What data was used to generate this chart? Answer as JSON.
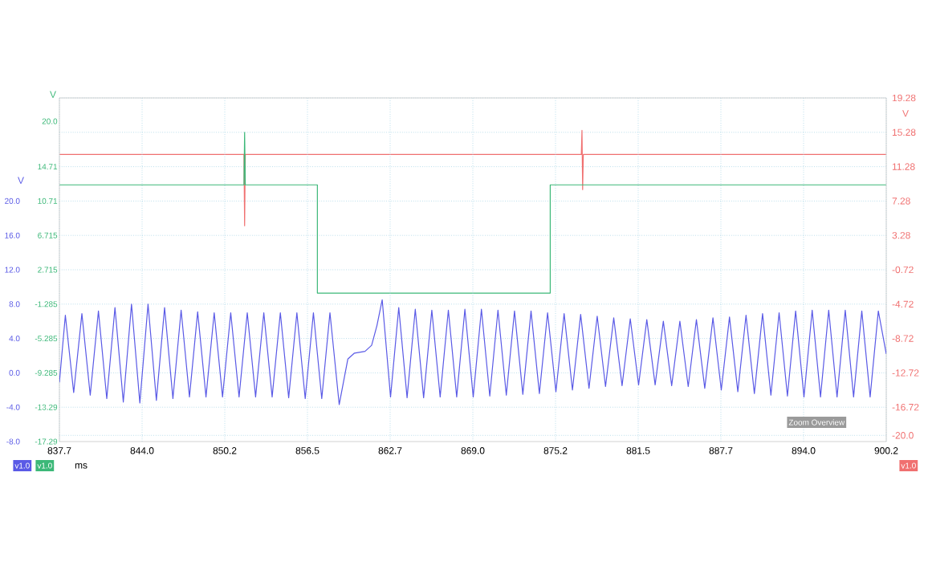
{
  "chart_data": {
    "type": "line",
    "xlabel": "ms",
    "ylabel": "V",
    "y2label": "V",
    "y3label": "V",
    "xlim": [
      837.7,
      900.2
    ],
    "xticks": [
      837.7,
      {
        "value": 843.95,
        "label": "844.0"
      },
      850.2,
      {
        "value": 856.45,
        "label": "856.5"
      },
      862.7,
      {
        "value": 868.95,
        "label": "869.0"
      },
      875.2,
      {
        "value": 881.45,
        "label": "881.5"
      },
      887.7,
      {
        "value": 893.95,
        "label": "894.0"
      },
      900.2
    ],
    "ylim": [
      -8,
      32
    ],
    "yticks": [
      {
        "value": -8,
        "label": "-8.0"
      },
      {
        "value": -4,
        "label": "-4.0"
      },
      {
        "value": 0,
        "label": "0.0"
      },
      {
        "value": 4,
        "label": "4.0"
      },
      {
        "value": 8,
        "label": "8.0"
      },
      {
        "value": 12,
        "label": "12.0"
      },
      {
        "value": 16,
        "label": "16.0"
      },
      {
        "value": 20,
        "label": "20.0"
      }
    ],
    "y2lim": [
      -20.72,
      19.28
    ],
    "y2ticks": [
      {
        "value": -20,
        "label": "-20.0"
      },
      -16.72,
      -12.72,
      -8.72,
      -4.72,
      -0.72,
      3.28,
      7.28,
      11.28,
      15.28,
      19.28
    ],
    "y3lim": [
      -17.285,
      22.715
    ],
    "y3ticks": [
      {
        "value": -17.285,
        "label": "-17.29"
      },
      {
        "value": -13.285,
        "label": "-13.29"
      },
      -9.285,
      -5.285,
      -1.285,
      2.715,
      6.715,
      {
        "value": 10.715,
        "label": "10.71"
      },
      {
        "value": 14.715,
        "label": "14.71"
      },
      {
        "value": 20,
        "label": "20.0"
      }
    ],
    "grid": true,
    "annotations": [
      "Zoom Overview",
      "v1.0",
      "v1.0",
      "v1.0"
    ],
    "series": [
      {
        "color": "#5a5ae6",
        "x": [
          837.7,
          838.15,
          838.78,
          839.4,
          840.03,
          840.65,
          841.28,
          841.9,
          842.53,
          843.15,
          843.78,
          844.4,
          845.03,
          845.65,
          846.28,
          846.9,
          847.53,
          848.15,
          848.78,
          849.4,
          850.03,
          850.65,
          851.28,
          851.9,
          852.53,
          853.15,
          853.78,
          854.4,
          855.03,
          855.65,
          856.28,
          856.9,
          857.53,
          858.15,
          858.85,
          859.5,
          860.0,
          860.8,
          861.3,
          861.7,
          862.1,
          862.73,
          863.35,
          863.98,
          864.6,
          865.23,
          865.85,
          866.48,
          867.1,
          867.73,
          868.35,
          868.98,
          869.6,
          870.23,
          870.85,
          871.48,
          872.1,
          872.73,
          873.35,
          873.98,
          874.6,
          875.23,
          875.85,
          876.48,
          877.1,
          877.73,
          878.35,
          878.98,
          879.6,
          880.23,
          880.85,
          881.48,
          882.1,
          882.73,
          883.35,
          883.98,
          884.6,
          885.23,
          885.85,
          886.48,
          887.1,
          887.73,
          888.35,
          888.98,
          889.6,
          890.23,
          890.85,
          891.48,
          892.1,
          892.73,
          893.35,
          893.98,
          894.6,
          895.23,
          895.85,
          896.48,
          897.1,
          897.73,
          898.35,
          898.98,
          899.6,
          900.2
        ],
        "values": [
          -1.1,
          6.7,
          -2.3,
          6.9,
          -2.6,
          7.2,
          -3.0,
          7.6,
          -3.4,
          8.0,
          -3.5,
          8.0,
          -3.2,
          7.6,
          -3.0,
          7.3,
          -2.8,
          7.1,
          -2.8,
          7.0,
          -2.8,
          7.0,
          -2.8,
          7.0,
          -2.8,
          7.0,
          -2.8,
          7.0,
          -2.9,
          7.0,
          -3.0,
          7.0,
          -3.0,
          7.0,
          -3.7,
          1.6,
          2.3,
          2.5,
          3.2,
          5.5,
          8.5,
          -2.8,
          7.6,
          -2.9,
          7.4,
          -2.9,
          7.3,
          -2.8,
          7.3,
          -2.8,
          7.4,
          -2.8,
          7.4,
          -2.7,
          7.3,
          -2.6,
          7.2,
          -2.5,
          7.2,
          -2.4,
          7.0,
          -2.2,
          6.9,
          -2.0,
          6.8,
          -1.8,
          6.6,
          -1.6,
          6.4,
          -1.5,
          6.3,
          -1.4,
          6.2,
          -1.4,
          6.0,
          -1.5,
          6.0,
          -1.6,
          6.2,
          -1.8,
          6.4,
          -2.0,
          6.5,
          -2.2,
          6.7,
          -2.4,
          6.9,
          -2.6,
          7.0,
          -2.7,
          7.2,
          -2.8,
          7.3,
          -2.8,
          7.3,
          -2.8,
          7.3,
          -2.8,
          7.2,
          -2.8,
          7.2,
          2.2
        ]
      },
      {
        "color": "#3cb878",
        "axis": "y3",
        "x": [
          837.7,
          851.65,
          851.7,
          851.75,
          857.2,
          857.2,
          874.8,
          874.8,
          900.2
        ],
        "values": [
          12.6,
          12.6,
          18.7,
          12.6,
          12.6,
          0.0,
          0.0,
          12.6,
          12.6
        ]
      },
      {
        "color": "#f07070",
        "axis": "y2",
        "x": [
          837.7,
          851.65,
          851.7,
          851.75,
          877.15,
          877.2,
          877.25,
          877.3,
          900.2
        ],
        "values": [
          12.7,
          12.7,
          4.4,
          12.7,
          12.7,
          15.5,
          8.6,
          12.7,
          12.7
        ]
      }
    ]
  }
}
